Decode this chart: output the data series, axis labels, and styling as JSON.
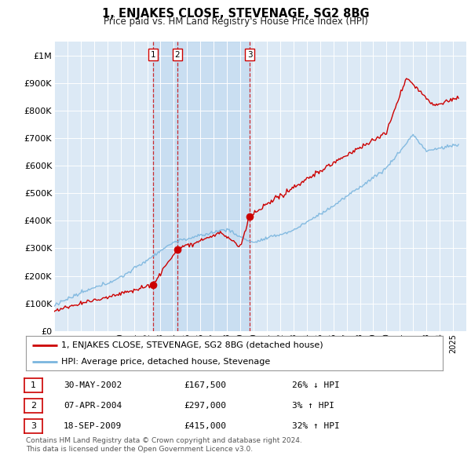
{
  "title": "1, ENJAKES CLOSE, STEVENAGE, SG2 8BG",
  "subtitle": "Price paid vs. HM Land Registry's House Price Index (HPI)",
  "plot_bg_color": "#dce9f5",
  "ylim": [
    0,
    1050000
  ],
  "yticks": [
    0,
    100000,
    200000,
    300000,
    400000,
    500000,
    600000,
    700000,
    800000,
    900000,
    1000000
  ],
  "ytick_labels": [
    "£0",
    "£100K",
    "£200K",
    "£300K",
    "£400K",
    "£500K",
    "£600K",
    "£700K",
    "£800K",
    "£900K",
    "£1M"
  ],
  "hpi_color": "#7ab5de",
  "price_color": "#cc0000",
  "sale_marker_color": "#cc0000",
  "legend_label_price": "1, ENJAKES CLOSE, STEVENAGE, SG2 8BG (detached house)",
  "legend_label_hpi": "HPI: Average price, detached house, Stevenage",
  "sale1_date": "30-MAY-2002",
  "sale1_price": 167500,
  "sale1_x": 2002.42,
  "sale1_pct": "26% ↓ HPI",
  "sale2_date": "07-APR-2004",
  "sale2_price": 297000,
  "sale2_x": 2004.27,
  "sale2_pct": "3% ↑ HPI",
  "sale3_date": "18-SEP-2009",
  "sale3_price": 415000,
  "sale3_x": 2009.72,
  "sale3_pct": "32% ↑ HPI",
  "footnote1": "Contains HM Land Registry data © Crown copyright and database right 2024.",
  "footnote2": "This data is licensed under the Open Government Licence v3.0.",
  "xmin": 1995,
  "xmax": 2026
}
